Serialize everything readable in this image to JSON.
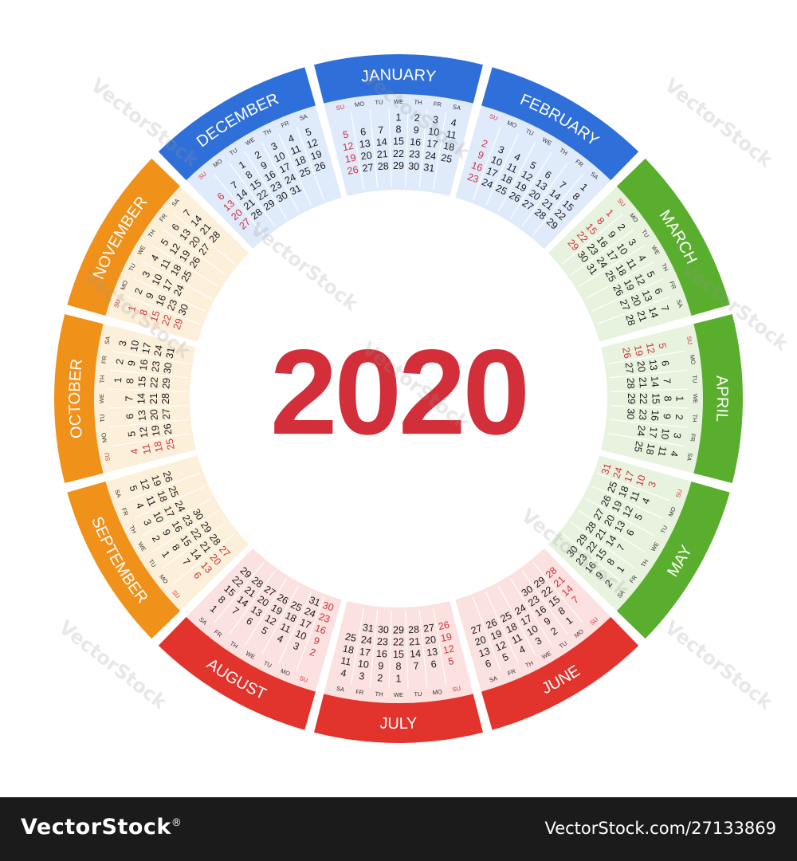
{
  "year": "2020",
  "colors": {
    "year": "#d32f3a",
    "winter_band": "#2f6fd9",
    "winter_fill": "#dfeafb",
    "spring_band": "#5aae2e",
    "spring_fill": "#e8f3df",
    "summer_band": "#e2332c",
    "summer_fill": "#fbe1df",
    "autumn_band": "#f0911a",
    "autumn_fill": "#fdf0da",
    "sunday": "#d32f3a",
    "other_month": "#8fb6e6"
  },
  "weekday_labels": [
    "SU",
    "MO",
    "TU",
    "WE",
    "TH",
    "FR",
    "SA"
  ],
  "months": [
    {
      "name": "JANUARY",
      "season": "winter",
      "first_weekday": 3,
      "days": 31
    },
    {
      "name": "FEBRUARY",
      "season": "winter",
      "first_weekday": 6,
      "days": 29
    },
    {
      "name": "MARCH",
      "season": "spring",
      "first_weekday": 0,
      "days": 31
    },
    {
      "name": "APRIL",
      "season": "spring",
      "first_weekday": 3,
      "days": 30
    },
    {
      "name": "MAY",
      "season": "spring",
      "first_weekday": 5,
      "days": 31
    },
    {
      "name": "JUNE",
      "season": "summer",
      "first_weekday": 1,
      "days": 30
    },
    {
      "name": "JULY",
      "season": "summer",
      "first_weekday": 3,
      "days": 31
    },
    {
      "name": "AUGUST",
      "season": "summer",
      "first_weekday": 6,
      "days": 31
    },
    {
      "name": "SEPTEMBER",
      "season": "autumn",
      "first_weekday": 2,
      "days": 30
    },
    {
      "name": "OCTOBER",
      "season": "autumn",
      "first_weekday": 4,
      "days": 31
    },
    {
      "name": "NOVEMBER",
      "season": "autumn",
      "first_weekday": 0,
      "days": 30
    },
    {
      "name": "DECEMBER",
      "season": "winter",
      "first_weekday": 2,
      "days": 31
    }
  ],
  "watermark": "VectorStock",
  "footer": {
    "brand": "VectorStock",
    "reg": "®",
    "url": "VectorStock.com/27133869"
  }
}
